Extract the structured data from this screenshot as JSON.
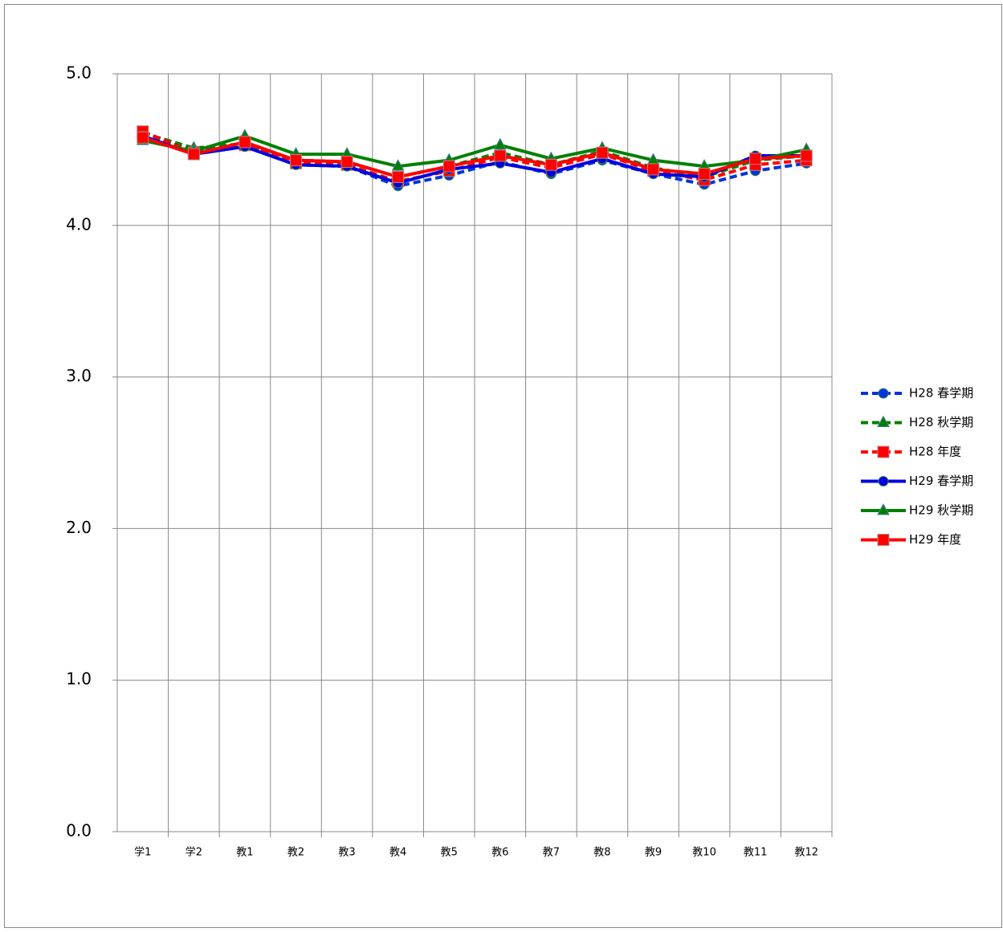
{
  "chart_data": {
    "type": "line",
    "categories": [
      "学1",
      "学2",
      "教1",
      "教2",
      "教3",
      "教4",
      "教5",
      "教6",
      "教7",
      "教8",
      "教9",
      "教10",
      "教11",
      "教12"
    ],
    "series": [
      {
        "name": "H28 春学期",
        "color": "#0033dd",
        "dash": true,
        "marker": "circle",
        "values": [
          4.61,
          4.49,
          4.52,
          4.4,
          4.39,
          4.26,
          4.33,
          4.42,
          4.34,
          4.43,
          4.34,
          4.27,
          4.36,
          4.41
        ]
      },
      {
        "name": "H28 秋学期",
        "color": "#008000",
        "dash": true,
        "marker": "triangle",
        "values": [
          4.61,
          4.51,
          4.54,
          4.43,
          4.42,
          4.32,
          4.39,
          4.48,
          4.4,
          4.49,
          4.38,
          4.32,
          4.43,
          4.46
        ]
      },
      {
        "name": "H28 年度",
        "color": "#ff0000",
        "dash": true,
        "marker": "square",
        "values": [
          4.62,
          4.48,
          4.53,
          4.41,
          4.4,
          4.29,
          4.36,
          4.45,
          4.38,
          4.47,
          4.36,
          4.3,
          4.4,
          4.43
        ]
      },
      {
        "name": "H29 春学期",
        "color": "#0000e0",
        "dash": false,
        "marker": "circle",
        "values": [
          4.59,
          4.47,
          4.52,
          4.4,
          4.39,
          4.28,
          4.37,
          4.41,
          4.35,
          4.44,
          4.34,
          4.32,
          4.46,
          4.46
        ]
      },
      {
        "name": "H29 秋学期",
        "color": "#008000",
        "dash": false,
        "marker": "triangle",
        "values": [
          4.56,
          4.49,
          4.59,
          4.47,
          4.47,
          4.39,
          4.43,
          4.53,
          4.44,
          4.51,
          4.43,
          4.39,
          4.43,
          4.5
        ]
      },
      {
        "name": "H29 年度",
        "color": "#ff0000",
        "dash": false,
        "marker": "square",
        "values": [
          4.58,
          4.47,
          4.55,
          4.43,
          4.42,
          4.32,
          4.39,
          4.46,
          4.4,
          4.48,
          4.37,
          4.34,
          4.44,
          4.46
        ]
      }
    ],
    "ylim": [
      0,
      5
    ],
    "yticks": [
      {
        "value": 0,
        "label": "0.0"
      },
      {
        "value": 1,
        "label": "1.0"
      },
      {
        "value": 2,
        "label": "2.0"
      },
      {
        "value": 3,
        "label": "3.0"
      },
      {
        "value": 4,
        "label": "4.0"
      },
      {
        "value": 5,
        "label": "5.0"
      }
    ],
    "grid": true,
    "legend": "right"
  }
}
